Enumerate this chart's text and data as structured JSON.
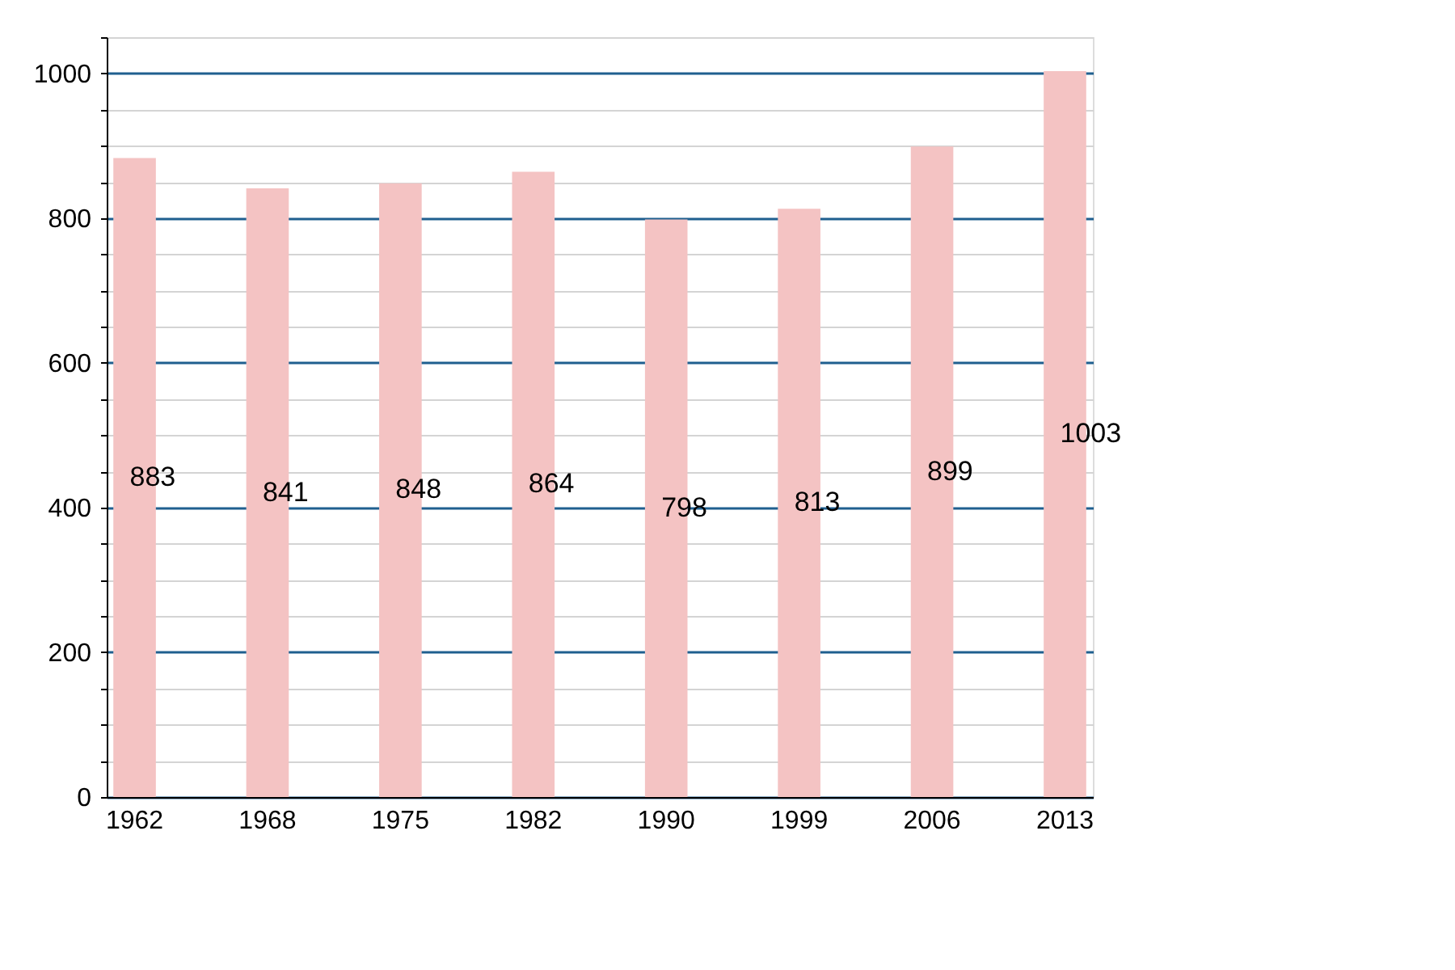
{
  "chart_data": {
    "type": "bar",
    "categories": [
      "1962",
      "1968",
      "1975",
      "1982",
      "1990",
      "1999",
      "2006",
      "2013"
    ],
    "values": [
      883,
      841,
      848,
      864,
      798,
      813,
      899,
      1003
    ],
    "color": "#f4c3c3",
    "data_labels": true,
    "grid": "y",
    "ylim": [
      0,
      1050
    ],
    "yticks": [
      0,
      {
        "value": 50,
        "label": null
      },
      200,
      {
        "value": 100,
        "label": null
      },
      {
        "value": 150,
        "label": null
      },
      {
        "value": 250,
        "label": null
      },
      {
        "value": 300,
        "label": null
      },
      {
        "value": 350,
        "label": null
      },
      400,
      {
        "value": 450,
        "label": null
      },
      {
        "value": 500,
        "label": null
      },
      {
        "value": 550,
        "label": null
      },
      600,
      {
        "value": 650,
        "label": null
      },
      {
        "value": 700,
        "label": null
      },
      {
        "value": 750,
        "label": null
      },
      800,
      {
        "value": 850,
        "label": null
      },
      {
        "value": 900,
        "label": null
      },
      {
        "value": 950,
        "label": null
      },
      1000,
      {
        "value": 1050,
        "label": null
      }
    ]
  }
}
